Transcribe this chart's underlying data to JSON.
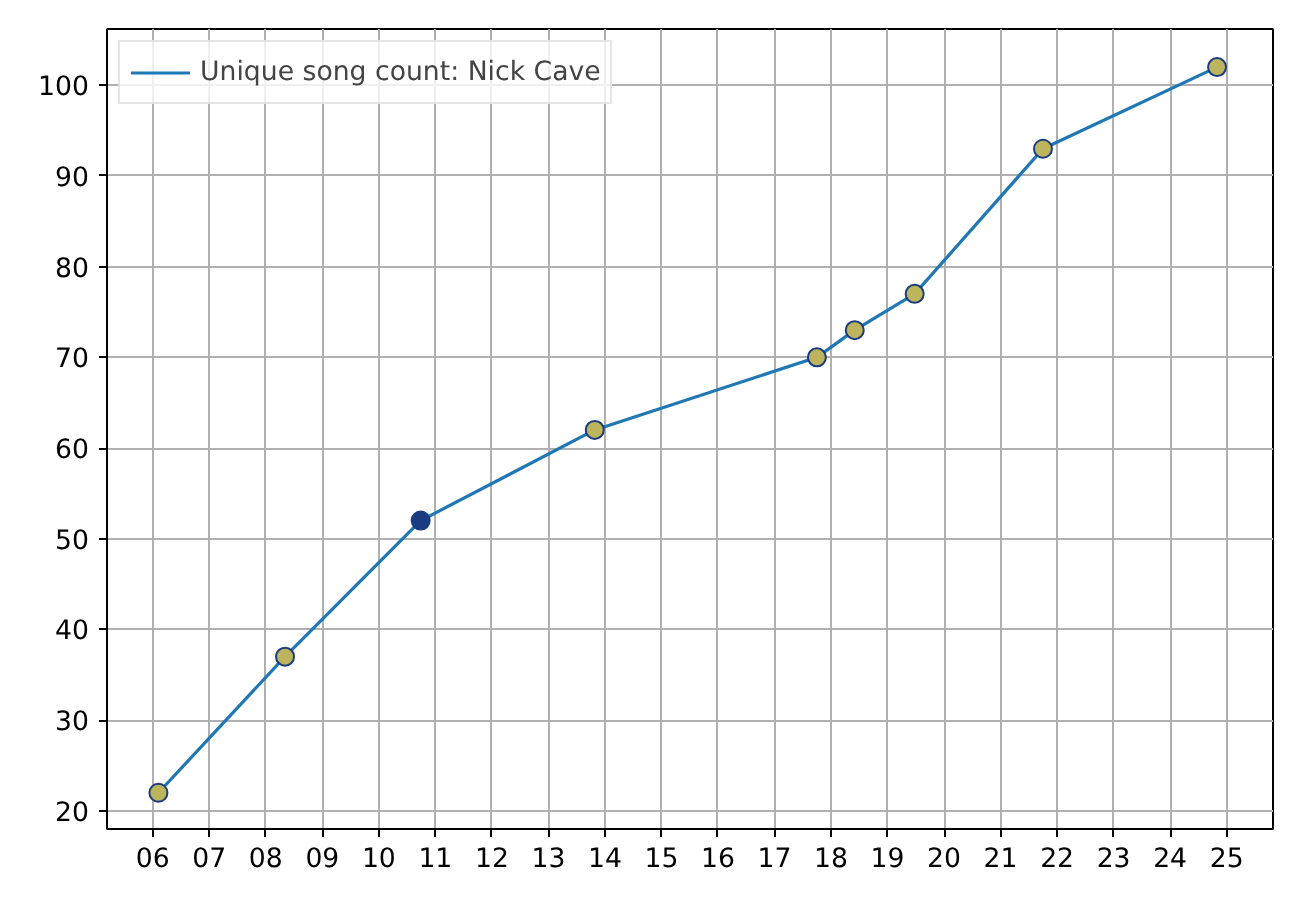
{
  "chart_data": {
    "type": "line",
    "x": [
      6.1,
      8.34,
      10.74,
      13.82,
      17.75,
      18.42,
      19.48,
      21.75,
      24.83
    ],
    "series": [
      {
        "name": "Unique song count: Nick Cave",
        "color": "#1f77b4",
        "values": [
          22,
          37,
          52,
          62,
          70,
          73,
          77,
          93,
          102
        ],
        "colors": [
          "#bdb55b",
          "#bdb55b",
          "#1a3c80",
          "#bdb55b",
          "#bdb55b",
          "#bdb55b",
          "#bdb55b",
          "#bdb55b",
          "#bdb55b"
        ]
      }
    ],
    "xlim": [
      5.19,
      25.82
    ],
    "ylim": [
      18.0,
      106.2
    ],
    "xticks": [
      {
        "value": 6,
        "label": "06"
      },
      {
        "value": 7,
        "label": "07"
      },
      {
        "value": 8,
        "label": "08"
      },
      {
        "value": 9,
        "label": "09"
      },
      10,
      11,
      12,
      13,
      14,
      15,
      16,
      17,
      18,
      19,
      20,
      21,
      22,
      23,
      24,
      25
    ],
    "yticks": [
      20,
      30,
      40,
      50,
      60,
      70,
      80,
      90,
      100
    ],
    "grid": true,
    "legend": "top left",
    "marker": "circle",
    "line_style": "solid"
  }
}
